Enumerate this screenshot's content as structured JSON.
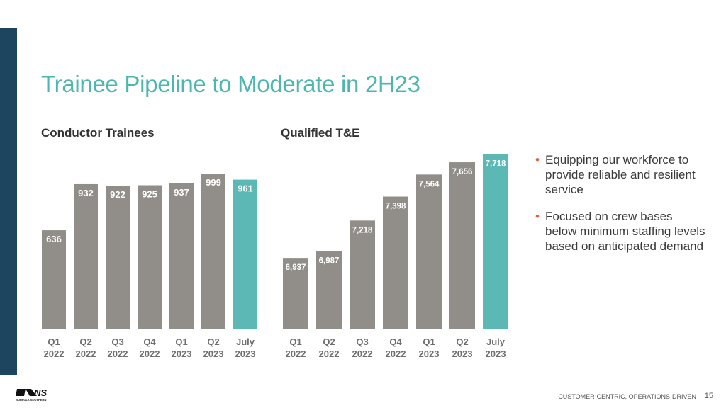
{
  "title": "Trainee Pipeline to Moderate in 2H23",
  "chart_data": [
    {
      "type": "bar",
      "title": "Conductor Trainees",
      "categories": [
        [
          "Q1",
          "2022"
        ],
        [
          "Q2",
          "2022"
        ],
        [
          "Q3",
          "2022"
        ],
        [
          "Q4",
          "2022"
        ],
        [
          "Q1",
          "2023"
        ],
        [
          "Q2",
          "2023"
        ],
        [
          "July",
          "2023"
        ]
      ],
      "values": [
        636,
        932,
        922,
        925,
        937,
        999,
        961
      ],
      "data_labels": [
        "636",
        "932",
        "922",
        "925",
        "937",
        "999",
        "961"
      ],
      "highlight_index": 6,
      "ylim": [
        0,
        1050
      ],
      "xlabel": "",
      "ylabel": ""
    },
    {
      "type": "bar",
      "title": "Qualified T&E",
      "categories": [
        [
          "Q1",
          "2022"
        ],
        [
          "Q2",
          "2022"
        ],
        [
          "Q3",
          "2022"
        ],
        [
          "Q4",
          "2022"
        ],
        [
          "Q1",
          "2023"
        ],
        [
          "Q2",
          "2023"
        ],
        [
          "July",
          "2023"
        ]
      ],
      "values": [
        6937,
        6987,
        7218,
        7398,
        7564,
        7656,
        7718
      ],
      "data_labels": [
        "6,937",
        "6,987",
        "7,218",
        "7,398",
        "7,564",
        "7,656",
        "7,718"
      ],
      "highlight_index": 6,
      "ylim": [
        6400,
        7800
      ],
      "xlabel": "",
      "ylabel": ""
    }
  ],
  "colors": {
    "bar": "#918e89",
    "highlight": "#5bb8b4",
    "title": "#4db6af"
  },
  "bullets": [
    "Equipping our workforce to provide reliable and resilient service",
    "Focused on crew bases below minimum staffing levels based on anticipated demand"
  ],
  "bullet_glyph": "•",
  "footer": {
    "tagline": "CUSTOMER-CENTRIC, OPERATIONS-DRIVEN",
    "page": "15",
    "logo_text": "NORFOLK SOUTHERN"
  }
}
